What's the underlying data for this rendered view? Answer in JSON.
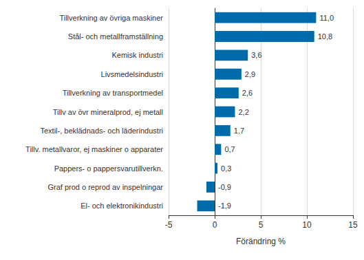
{
  "chart_data": {
    "type": "bar",
    "orientation": "horizontal",
    "categories": [
      "Tillverkning av övriga maskiner",
      "Stål- och metallframställning",
      "Kemisk industri",
      "Livsmedelsindustri",
      "Tillverkning av transportmedel",
      "Tillv av övr mineralprod, ej metall",
      "Textil-, beklädnads- och läderindustri",
      "Tillv. metallvaror, ej maskiner o apparater",
      "Pappers- o pappersvarutillverkn.",
      "Graf prod o reprod av inspelningar",
      "El- och elektronikindustri"
    ],
    "values": [
      11.0,
      10.8,
      3.6,
      2.9,
      2.6,
      2.2,
      1.7,
      0.7,
      0.3,
      -0.9,
      -1.9
    ],
    "value_labels": [
      "11,0",
      "10,8",
      "3,6",
      "2,9",
      "2,6",
      "2,2",
      "1,7",
      "0,7",
      "0,3",
      "-0,9",
      "-1,9"
    ],
    "data_labels": true,
    "color": "#006bab",
    "x_label": "Förändring %",
    "xlim": [
      -5,
      15
    ],
    "xticks": [
      -5,
      0,
      5,
      10,
      15
    ],
    "grid": true
  }
}
